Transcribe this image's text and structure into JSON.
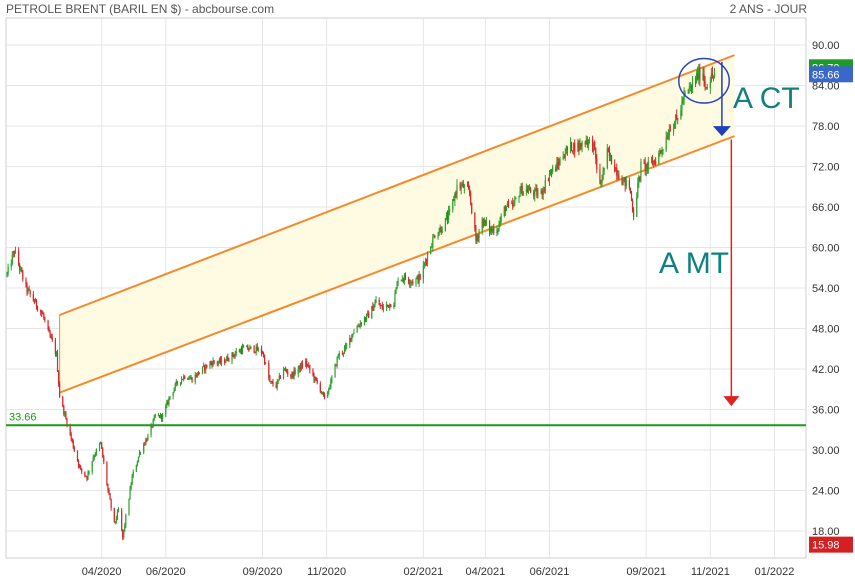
{
  "header": {
    "title": "PETROLE BRENT (BARIL EN $) - abcbourse.com",
    "period": "2 ANS - JOUR"
  },
  "chart_data": {
    "type": "candlestick",
    "title": "PETROLE BRENT (BARIL EN $)",
    "ylim": [
      14,
      94
    ],
    "yticks": [
      "90.00",
      "84.00",
      "78.00",
      "72.00",
      "66.00",
      "60.00",
      "54.00",
      "48.00",
      "42.00",
      "36.00",
      "30.00",
      "24.00",
      "18.00"
    ],
    "ytick_values": [
      90,
      84,
      78,
      72,
      66,
      60,
      54,
      48,
      42,
      36,
      30,
      24,
      18
    ],
    "xlim": [
      "2020-01-01",
      "2022-01-31"
    ],
    "xticks": [
      "04/2020",
      "06/2020",
      "09/2020",
      "11/2020",
      "02/2021",
      "04/2021",
      "06/2021",
      "09/2021",
      "11/2021",
      "01/2022"
    ],
    "xtick_dates": [
      "2020-04-01",
      "2020-06-01",
      "2020-09-01",
      "2020-11-01",
      "2021-02-01",
      "2021-04-01",
      "2021-06-01",
      "2021-09-01",
      "2021-11-01",
      "2022-01-01"
    ],
    "grid": true,
    "price_labels": {
      "high": "86.70",
      "last": "85.66",
      "low": "15.98",
      "support": "33.66"
    },
    "support_level": 33.66,
    "price_path": [
      [
        "2020-01-02",
        56
      ],
      [
        "2020-01-06",
        58
      ],
      [
        "2020-01-09",
        59.5
      ],
      [
        "2020-01-14",
        57
      ],
      [
        "2020-01-20",
        54
      ],
      [
        "2020-01-28",
        52
      ],
      [
        "2020-02-05",
        50
      ],
      [
        "2020-02-11",
        47
      ],
      [
        "2020-02-14",
        46
      ],
      [
        "2020-02-18",
        44
      ],
      [
        "2020-02-21",
        38
      ],
      [
        "2020-02-28",
        34
      ],
      [
        "2020-03-06",
        30
      ],
      [
        "2020-03-12",
        27
      ],
      [
        "2020-03-18",
        26
      ],
      [
        "2020-03-24",
        29
      ],
      [
        "2020-03-31",
        31
      ],
      [
        "2020-04-07",
        24
      ],
      [
        "2020-04-13",
        19
      ],
      [
        "2020-04-17",
        21
      ],
      [
        "2020-04-21",
        17
      ],
      [
        "2020-04-24",
        20
      ],
      [
        "2020-04-30",
        26
      ],
      [
        "2020-05-08",
        30
      ],
      [
        "2020-05-15",
        32
      ],
      [
        "2020-05-22",
        35
      ],
      [
        "2020-05-29",
        35
      ],
      [
        "2020-06-05",
        38
      ],
      [
        "2020-06-12",
        40
      ],
      [
        "2020-06-19",
        41
      ],
      [
        "2020-06-26",
        40.5
      ],
      [
        "2020-07-06",
        42
      ],
      [
        "2020-07-15",
        43
      ],
      [
        "2020-07-24",
        43
      ],
      [
        "2020-08-03",
        44
      ],
      [
        "2020-08-13",
        45
      ],
      [
        "2020-08-24",
        45
      ],
      [
        "2020-09-01",
        44.5
      ],
      [
        "2020-09-08",
        40
      ],
      [
        "2020-09-14",
        39.5
      ],
      [
        "2020-09-21",
        42
      ],
      [
        "2020-09-28",
        41
      ],
      [
        "2020-10-05",
        42
      ],
      [
        "2020-10-12",
        43
      ],
      [
        "2020-10-19",
        41
      ],
      [
        "2020-10-26",
        39
      ],
      [
        "2020-10-30",
        37.5
      ],
      [
        "2020-11-05",
        40
      ],
      [
        "2020-11-12",
        44
      ],
      [
        "2020-11-19",
        45
      ],
      [
        "2020-11-26",
        47.5
      ],
      [
        "2020-12-04",
        49
      ],
      [
        "2020-12-11",
        50
      ],
      [
        "2020-12-18",
        52
      ],
      [
        "2020-12-24",
        51
      ],
      [
        "2021-01-04",
        52
      ],
      [
        "2021-01-08",
        55.5
      ],
      [
        "2021-01-15",
        55.5
      ],
      [
        "2021-01-22",
        55
      ],
      [
        "2021-01-29",
        55.5
      ],
      [
        "2021-02-05",
        59
      ],
      [
        "2021-02-12",
        62
      ],
      [
        "2021-02-19",
        63
      ],
      [
        "2021-02-26",
        65
      ],
      [
        "2021-03-05",
        69
      ],
      [
        "2021-03-11",
        69
      ],
      [
        "2021-03-17",
        68
      ],
      [
        "2021-03-23",
        61
      ],
      [
        "2021-03-29",
        64
      ],
      [
        "2021-04-06",
        62.5
      ],
      [
        "2021-04-13",
        63
      ],
      [
        "2021-04-20",
        66
      ],
      [
        "2021-04-27",
        66
      ],
      [
        "2021-05-04",
        68.5
      ],
      [
        "2021-05-11",
        68.5
      ],
      [
        "2021-05-18",
        68
      ],
      [
        "2021-05-24",
        68
      ],
      [
        "2021-06-01",
        71
      ],
      [
        "2021-06-08",
        72
      ],
      [
        "2021-06-15",
        74
      ],
      [
        "2021-06-22",
        75
      ],
      [
        "2021-06-29",
        75
      ],
      [
        "2021-07-06",
        76
      ],
      [
        "2021-07-13",
        75
      ],
      [
        "2021-07-19",
        69
      ],
      [
        "2021-07-26",
        74
      ],
      [
        "2021-08-02",
        72
      ],
      [
        "2021-08-09",
        70
      ],
      [
        "2021-08-16",
        69
      ],
      [
        "2021-08-20",
        65
      ],
      [
        "2021-08-27",
        72
      ],
      [
        "2021-09-03",
        72
      ],
      [
        "2021-09-10",
        73
      ],
      [
        "2021-09-17",
        75
      ],
      [
        "2021-09-24",
        78
      ],
      [
        "2021-10-01",
        79
      ],
      [
        "2021-10-06",
        82
      ],
      [
        "2021-10-13",
        83.5
      ],
      [
        "2021-10-20",
        85.5
      ],
      [
        "2021-10-25",
        86
      ],
      [
        "2021-10-27",
        84
      ],
      [
        "2021-11-01",
        85
      ],
      [
        "2021-11-05",
        85.66
      ]
    ],
    "annotations": {
      "short_term_label": "A CT",
      "medium_term_label": "A MT"
    },
    "channel": {
      "upper": [
        [
          "2020-02-21",
          50
        ],
        [
          "2021-11-24",
          88.5
        ]
      ],
      "lower": [
        [
          "2020-02-21",
          38.5
        ],
        [
          "2021-11-24",
          76.5
        ]
      ]
    },
    "targets": {
      "short_term": {
        "from": [
          "2021-11-12",
          87.5
        ],
        "to": [
          "2021-11-12",
          76.5
        ]
      },
      "medium_term": {
        "from": [
          "2021-11-21",
          76
        ],
        "to": [
          "2021-11-21",
          36.5
        ]
      }
    },
    "highlight_ellipse": {
      "center": [
        "2021-10-26",
        84.7
      ],
      "rx_days": 24,
      "ry_value": 3.3
    },
    "colors": {
      "up": "#2ca02c",
      "down": "#d62728",
      "channel": "#f4892c",
      "channel_fill": "#fffbe2",
      "support": "#1a9a1a",
      "grid": "#e6e6e6",
      "short_term": "#1f3fbf",
      "medium_term": "#e12020",
      "annotation_text": "#118080",
      "ellipse": "#2a46c4",
      "last_label": "#3a68c8",
      "high_label": "#1e9a2a",
      "low_label": "#d42020"
    }
  }
}
